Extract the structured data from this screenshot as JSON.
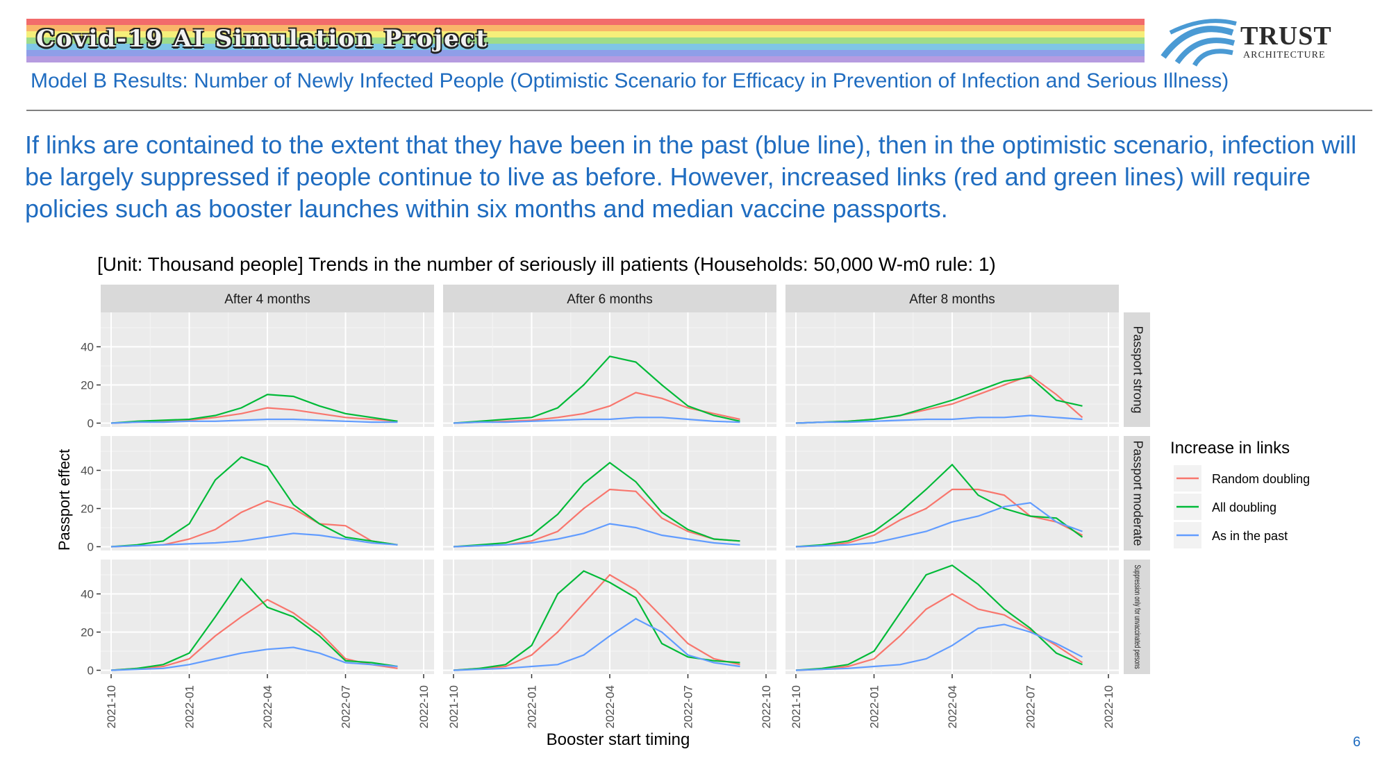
{
  "header": {
    "banner_title": "Covid-19 AI Simulation Project",
    "logo_name": "TRUST",
    "logo_sub": "ARCHITECTURE",
    "subtitle": "Model B Results: Number of Newly Infected People (Optimistic Scenario for Efficacy in Prevention of Infection and Serious Illness)"
  },
  "body": {
    "paragraph": "If links are contained to the extent that they have been in the past (blue line), then in the optimistic scenario, infection will be largely suppressed if people continue to live as before. However, increased links (red and green lines) will require policies such as booster launches within six months and median vaccine passports."
  },
  "page_number": "6",
  "colors": {
    "red": "#F8766D",
    "green": "#00BA38",
    "blue": "#619CFF",
    "accent": "#1f6cc0",
    "panel_bg": "#EBEBEB",
    "strip_bg": "#D9D9D9"
  },
  "chart_data": {
    "type": "line",
    "title": "[Unit: Thousand people] Trends in the number of seriously ill patients (Households: 50,000 W-m0 rule: 1)",
    "xlabel": "Booster start timing",
    "ylabel": "Passport effect",
    "x_ticks": [
      "2021-10",
      "2022-01",
      "2022-04",
      "2022-07",
      "2022-10"
    ],
    "y_ticks": [
      0,
      20,
      40
    ],
    "ylim": [
      -2,
      58
    ],
    "x_range": [
      "2021-10",
      "2022-10"
    ],
    "columns": [
      "After 4 months",
      "After 6 months",
      "After 8 months"
    ],
    "rows": [
      "Passport strong",
      "Passport moderate",
      "Suppression only for unvaccinated persons"
    ],
    "legend": {
      "title": "Increase in links",
      "position": "right",
      "entries": [
        "Random doubling",
        "All doubling",
        "As in the past"
      ]
    },
    "x": [
      "2021-10",
      "2021-11",
      "2021-12",
      "2022-01",
      "2022-02",
      "2022-03",
      "2022-04",
      "2022-05",
      "2022-06",
      "2022-07",
      "2022-08",
      "2022-09"
    ],
    "panels": [
      {
        "row": "Passport strong",
        "column": "After 4 months",
        "series": [
          {
            "name": "Random doubling",
            "values": [
              0,
              0.5,
              1,
              1.5,
              3,
              5,
              8,
              7,
              5,
              3,
              2,
              1
            ]
          },
          {
            "name": "All doubling",
            "values": [
              0,
              1,
              1.5,
              2,
              4,
              8,
              15,
              14,
              9,
              5,
              3,
              1
            ]
          },
          {
            "name": "As in the past",
            "values": [
              0,
              0.5,
              0.5,
              1,
              1,
              1.5,
              2,
              2,
              1.5,
              1,
              0.5,
              0.5
            ]
          }
        ]
      },
      {
        "row": "Passport strong",
        "column": "After 6 months",
        "series": [
          {
            "name": "Random doubling",
            "values": [
              0,
              0.5,
              1,
              1.5,
              3,
              5,
              9,
              16,
              13,
              8,
              5,
              2
            ]
          },
          {
            "name": "All doubling",
            "values": [
              0,
              1,
              2,
              3,
              8,
              20,
              35,
              32,
              20,
              9,
              4,
              1
            ]
          },
          {
            "name": "As in the past",
            "values": [
              0,
              0.5,
              0.5,
              1,
              1.5,
              2,
              2,
              3,
              3,
              2,
              1,
              0.5
            ]
          }
        ]
      },
      {
        "row": "Passport strong",
        "column": "After 8 months",
        "series": [
          {
            "name": "Random doubling",
            "values": [
              0,
              0.5,
              1,
              2,
              4,
              7,
              10,
              15,
              20,
              25,
              15,
              3
            ]
          },
          {
            "name": "All doubling",
            "values": [
              0,
              0.5,
              1,
              2,
              4,
              8,
              12,
              17,
              22,
              24,
              12,
              9
            ]
          },
          {
            "name": "As in the past",
            "values": [
              0,
              0.5,
              0.5,
              1,
              1.5,
              2,
              2,
              3,
              3,
              4,
              3,
              2
            ]
          }
        ]
      },
      {
        "row": "Passport moderate",
        "column": "After 4 months",
        "series": [
          {
            "name": "Random doubling",
            "values": [
              0,
              0.5,
              1,
              4,
              9,
              18,
              24,
              20,
              12,
              11,
              3,
              1
            ]
          },
          {
            "name": "All doubling",
            "values": [
              0,
              1,
              3,
              12,
              35,
              47,
              42,
              22,
              12,
              5,
              3,
              1
            ]
          },
          {
            "name": "As in the past",
            "values": [
              0,
              0.5,
              1,
              1.5,
              2,
              3,
              5,
              7,
              6,
              4,
              2,
              1
            ]
          }
        ]
      },
      {
        "row": "Passport moderate",
        "column": "After 6 months",
        "series": [
          {
            "name": "Random doubling",
            "values": [
              0,
              0.5,
              1,
              3,
              8,
              20,
              30,
              29,
              15,
              8,
              4,
              3
            ]
          },
          {
            "name": "All doubling",
            "values": [
              0,
              1,
              2,
              6,
              17,
              33,
              44,
              34,
              18,
              9,
              4,
              3
            ]
          },
          {
            "name": "As in the past",
            "values": [
              0,
              0.5,
              1,
              2,
              4,
              7,
              12,
              10,
              6,
              4,
              2,
              1
            ]
          }
        ]
      },
      {
        "row": "Passport moderate",
        "column": "After 8 months",
        "series": [
          {
            "name": "Random doubling",
            "values": [
              0,
              0.5,
              2,
              6,
              14,
              20,
              30,
              30,
              27,
              16,
              13,
              6
            ]
          },
          {
            "name": "All doubling",
            "values": [
              0,
              1,
              3,
              8,
              18,
              30,
              43,
              27,
              20,
              16,
              15,
              5
            ]
          },
          {
            "name": "As in the past",
            "values": [
              0,
              0.5,
              1,
              2,
              5,
              8,
              13,
              16,
              21,
              23,
              13,
              8
            ]
          }
        ]
      },
      {
        "row": "Suppression only for unvaccinated persons",
        "column": "After 4 months",
        "series": [
          {
            "name": "Random doubling",
            "values": [
              0,
              1,
              2,
              6,
              18,
              28,
              37,
              30,
              20,
              6,
              3,
              1
            ]
          },
          {
            "name": "All doubling",
            "values": [
              0,
              1,
              3,
              9,
              28,
              48,
              33,
              28,
              18,
              5,
              4,
              2
            ]
          },
          {
            "name": "As in the past",
            "values": [
              0,
              0.5,
              1,
              3,
              6,
              9,
              11,
              12,
              9,
              4,
              3,
              2
            ]
          }
        ]
      },
      {
        "row": "Suppression only for unvaccinated persons",
        "column": "After 6 months",
        "series": [
          {
            "name": "Random doubling",
            "values": [
              0,
              1,
              2,
              8,
              20,
              35,
              50,
              42,
              28,
              14,
              6,
              3
            ]
          },
          {
            "name": "All doubling",
            "values": [
              0,
              1,
              3,
              13,
              40,
              52,
              46,
              38,
              14,
              7,
              5,
              4
            ]
          },
          {
            "name": "As in the past",
            "values": [
              0,
              0.5,
              1,
              2,
              3,
              8,
              18,
              27,
              20,
              8,
              4,
              2
            ]
          }
        ]
      },
      {
        "row": "Suppression only for unvaccinated persons",
        "column": "After 8 months",
        "series": [
          {
            "name": "Random doubling",
            "values": [
              0,
              0.5,
              2,
              6,
              18,
              32,
              40,
              32,
              29,
              21,
              13,
              4
            ]
          },
          {
            "name": "All doubling",
            "values": [
              0,
              1,
              3,
              10,
              30,
              50,
              55,
              45,
              32,
              22,
              9,
              3
            ]
          },
          {
            "name": "As in the past",
            "values": [
              0,
              0.5,
              1,
              2,
              3,
              6,
              13,
              22,
              24,
              20,
              14,
              7
            ]
          }
        ]
      }
    ]
  }
}
